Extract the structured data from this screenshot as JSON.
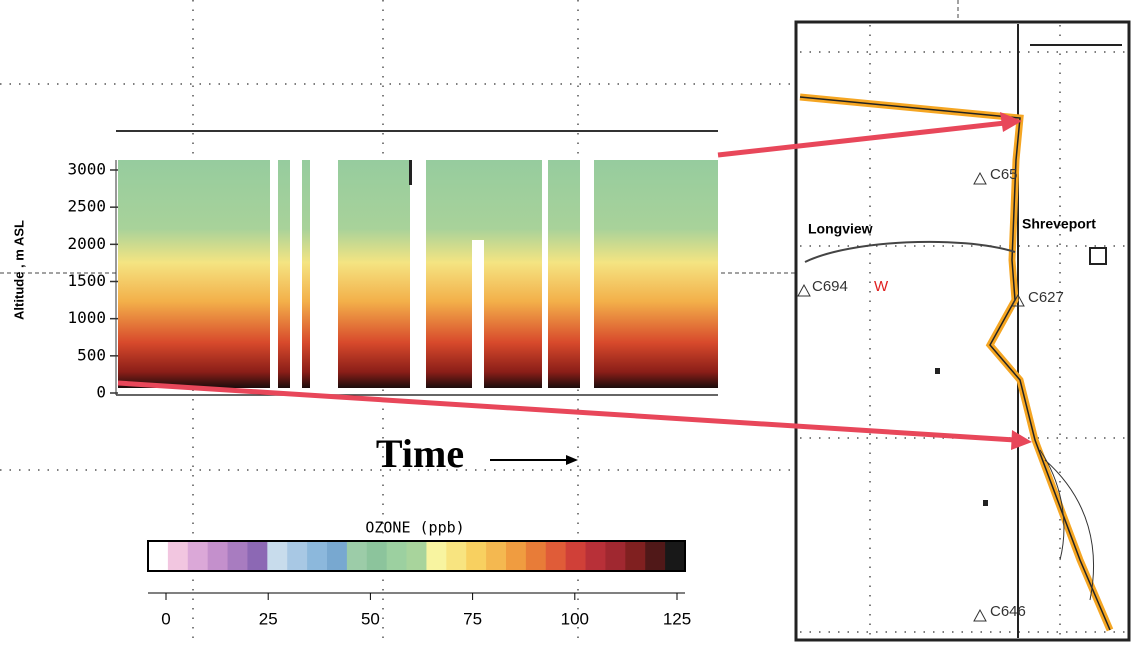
{
  "curtain": {
    "y_label": "Altitude , m ASL",
    "yticks": [
      0,
      500,
      1000,
      1500,
      2000,
      2500,
      3000
    ]
  },
  "time_label": "Time",
  "colorbar": {
    "title": "OZONE (ppb)",
    "ticks": [
      0,
      25,
      50,
      75,
      100,
      125
    ],
    "colors": [
      "#ffffff",
      "#f2c6e0",
      "#dba8d8",
      "#c490cc",
      "#a87cc0",
      "#8c68b4",
      "#c8dcec",
      "#a8c8e4",
      "#8cb8dc",
      "#78a8d0",
      "#9ccca8",
      "#8cc49c",
      "#9cd0a0",
      "#a8d49c",
      "#f8f4a0",
      "#f8e480",
      "#f8d060",
      "#f4b850",
      "#f09c40",
      "#e87c38",
      "#e05c38",
      "#d04038",
      "#b83038",
      "#a02830",
      "#802020",
      "#501818",
      "#181818"
    ]
  },
  "map": {
    "labels": [
      "Longview",
      "Shreveport",
      "C65",
      "C694",
      "W",
      "C627",
      "C646"
    ]
  }
}
